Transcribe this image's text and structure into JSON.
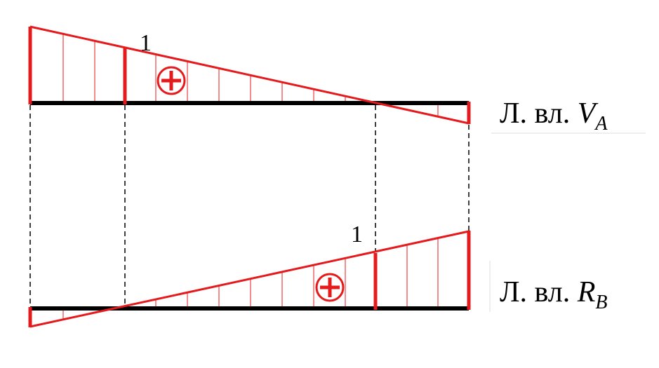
{
  "diagrams": [
    {
      "value_label": "1",
      "caption": {
        "prefix": "Л. вл. ",
        "symbol": "V",
        "subscript": "A"
      }
    },
    {
      "value_label": "1",
      "caption": {
        "prefix": "Л. вл. ",
        "symbol": "R",
        "subscript": "B"
      }
    }
  ]
}
